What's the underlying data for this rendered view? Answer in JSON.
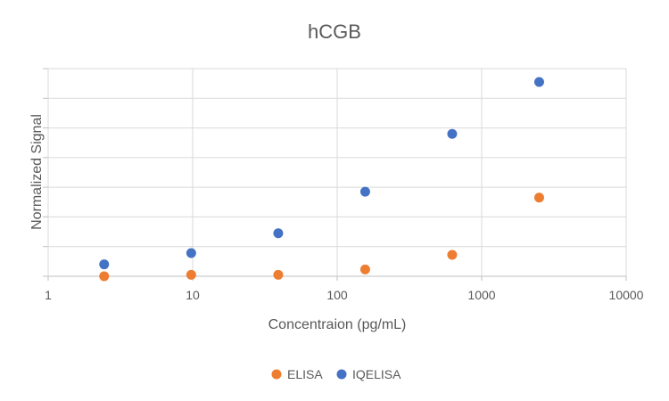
{
  "chart_data": {
    "type": "scatter",
    "title": "hCGB",
    "xlabel": "Concentraion (pg/mL)",
    "ylabel": "Normalized Signal",
    "x_scale": "log",
    "xlim": [
      1,
      10000
    ],
    "x_ticks": [
      "1",
      "10",
      "100",
      "1000",
      "10000"
    ],
    "ylim": [
      0,
      7
    ],
    "y_gridlines": 7,
    "y_tick_labels_shown": false,
    "grid": true,
    "legend": "bottom",
    "series": [
      {
        "name": "ELISA",
        "color": "#ED7D31",
        "points": [
          [
            2.44,
            0.0
          ],
          [
            9.77,
            0.05
          ],
          [
            39.1,
            0.05
          ],
          [
            156.3,
            0.23
          ],
          [
            625,
            0.72
          ],
          [
            2500,
            2.65
          ]
        ]
      },
      {
        "name": "IQELISA",
        "color": "#4472C4",
        "points": [
          [
            2.44,
            0.4
          ],
          [
            9.77,
            0.78
          ],
          [
            39.1,
            1.45
          ],
          [
            156.3,
            2.85
          ],
          [
            625,
            4.8
          ],
          [
            2500,
            6.55
          ]
        ]
      }
    ]
  }
}
